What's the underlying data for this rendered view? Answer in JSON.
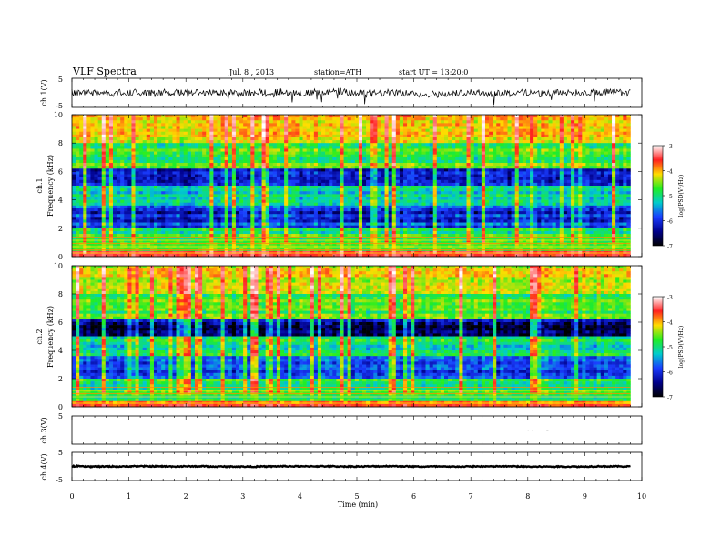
{
  "header": {
    "title": "VLF Spectra",
    "date": "Jul. 8 , 2013",
    "station": "station=ATH",
    "start": "start UT = 13:20:0"
  },
  "xaxis": {
    "label": "Time (min)",
    "ticks": [
      "0",
      "1",
      "2",
      "3",
      "4",
      "5",
      "6",
      "7",
      "8",
      "9",
      "10"
    ]
  },
  "panels": {
    "ch1_wave": {
      "ylabel": "ch.1(V)",
      "ticks": [
        "5",
        "-5"
      ]
    },
    "ch1_spec": {
      "ylabel_top": "ch.1",
      "ylabel_bottom": "Frequency (kHz)",
      "ticks": [
        "0",
        "2",
        "4",
        "6",
        "8",
        "10"
      ]
    },
    "ch2_spec": {
      "ylabel_top": "ch.2",
      "ylabel_bottom": "Frequency (kHz)",
      "ticks": [
        "0",
        "2",
        "4",
        "6",
        "8",
        "10"
      ]
    },
    "ch3_wave": {
      "ylabel": "ch.3(V)",
      "ticks": [
        "5"
      ]
    },
    "ch4_wave": {
      "ylabel": "ch.4(V)",
      "ticks": [
        "5",
        "-5"
      ]
    }
  },
  "colorbar": {
    "label": "log(PSD(V²/Hz)",
    "ticks": [
      "-3",
      "-4",
      "-5",
      "-6",
      "-7"
    ],
    "colors": [
      "#ffffff",
      "#ff2020",
      "#ffdd00",
      "#22ee22",
      "#00cccc",
      "#1a3cff",
      "#00008b",
      "#000000"
    ]
  },
  "chart_data": [
    {
      "type": "line",
      "title": "",
      "ylabel": "ch.1(V)",
      "xlabel": "Time (min)",
      "xlim": [
        0,
        10
      ],
      "ylim": [
        -5,
        5
      ],
      "series": [
        {
          "values_description": "",
          "baseline": 0,
          "noise_amplitude": 1.5
        }
      ]
    },
    {
      "type": "heatmap",
      "ylabel": "Frequency (kHz)",
      "xlim": [
        0,
        10
      ],
      "ylim": [
        0,
        10
      ],
      "colorbar_range": [
        -7,
        -3
      ],
      "colorbar_label": "log(PSD(V²/Hz)",
      "bands": [
        {
          "f_range": [
            0,
            0.5
          ],
          "level": -3.8
        },
        {
          "f_range": [
            0.5,
            2
          ],
          "level": -5.3
        },
        {
          "f_range": [
            2,
            3.5
          ],
          "level": -6.3
        },
        {
          "f_range": [
            3.5,
            5
          ],
          "level": -5.6
        },
        {
          "f_range": [
            5,
            6.3
          ],
          "level": -6.6
        },
        {
          "f_range": [
            6.3,
            8
          ],
          "level": -5.2
        },
        {
          "f_range": [
            8,
            10
          ],
          "level": -4.6
        }
      ]
    },
    {
      "type": "heatmap",
      "ylabel": "Frequency (kHz)",
      "xlim": [
        0,
        10
      ],
      "ylim": [
        0,
        10
      ],
      "colorbar_range": [
        -7,
        -3
      ],
      "colorbar_label": "log(PSD(V²/Hz)",
      "bands": [
        {
          "f_range": [
            0,
            0.5
          ],
          "level": -4.2
        },
        {
          "f_range": [
            0.5,
            2
          ],
          "level": -5.3
        },
        {
          "f_range": [
            2,
            3.5
          ],
          "level": -6.2
        },
        {
          "f_range": [
            3.5,
            5
          ],
          "level": -5.5
        },
        {
          "f_range": [
            5,
            6.3
          ],
          "level": -6.7
        },
        {
          "f_range": [
            6.3,
            8
          ],
          "level": -5.2
        },
        {
          "f_range": [
            8,
            10
          ],
          "level": -4.7
        }
      ]
    },
    {
      "type": "line",
      "ylabel": "ch.3(V)",
      "xlim": [
        0,
        10
      ],
      "ylim": [
        -5,
        5
      ],
      "series": [
        {
          "baseline": 0,
          "noise_amplitude": 0.1
        }
      ]
    },
    {
      "type": "line",
      "ylabel": "ch.4(V)",
      "xlim": [
        0,
        10
      ],
      "ylim": [
        -5,
        5
      ],
      "series": [
        {
          "baseline": 0,
          "noise_amplitude": 0.35
        }
      ]
    }
  ]
}
